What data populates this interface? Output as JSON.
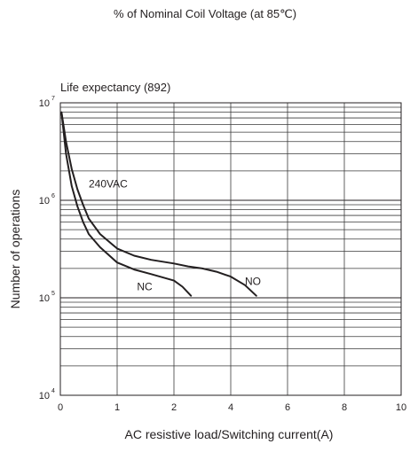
{
  "figure": {
    "header": "% of Nominal Coil Voltage (at 85℃)",
    "chart_title": "Life expectancy (892)"
  },
  "chart_data": {
    "type": "line",
    "title": "Life expectancy (892)",
    "xlabel": "AC resistive load/Switching current(A)",
    "ylabel": "Number of operations",
    "xlim": [
      0,
      10
    ],
    "ylim": [
      10000,
      10000000
    ],
    "y_scale": "log",
    "grid": true,
    "x_ticks": [
      "0",
      "1",
      "2",
      "4",
      "6",
      "8",
      "10"
    ],
    "y_ticks": [
      {
        "base": "10",
        "exp": "4"
      },
      {
        "base": "10",
        "exp": "5"
      },
      {
        "base": "10",
        "exp": "6"
      },
      {
        "base": "10",
        "exp": "7"
      }
    ],
    "annotations": [
      "240VAC"
    ],
    "series": [
      {
        "name": "NO",
        "x": [
          0.02,
          0.1,
          0.2,
          0.3,
          0.4,
          0.5,
          0.7,
          1.0,
          1.3,
          1.6,
          2.0,
          2.5,
          3.0,
          3.5,
          4.0,
          4.5,
          4.9
        ],
        "y": [
          8000000,
          4000000,
          2100000,
          1300000,
          900000,
          650000,
          450000,
          320000,
          270000,
          245000,
          225000,
          210000,
          200000,
          185000,
          165000,
          135000,
          105000
        ]
      },
      {
        "name": "NC",
        "x": [
          0.02,
          0.1,
          0.2,
          0.3,
          0.4,
          0.5,
          0.7,
          1.0,
          1.3,
          1.6,
          2.0,
          2.3,
          2.6
        ],
        "y": [
          8000000,
          3000000,
          1400000,
          870000,
          600000,
          450000,
          330000,
          230000,
          195000,
          175000,
          150000,
          130000,
          105000
        ]
      }
    ]
  }
}
